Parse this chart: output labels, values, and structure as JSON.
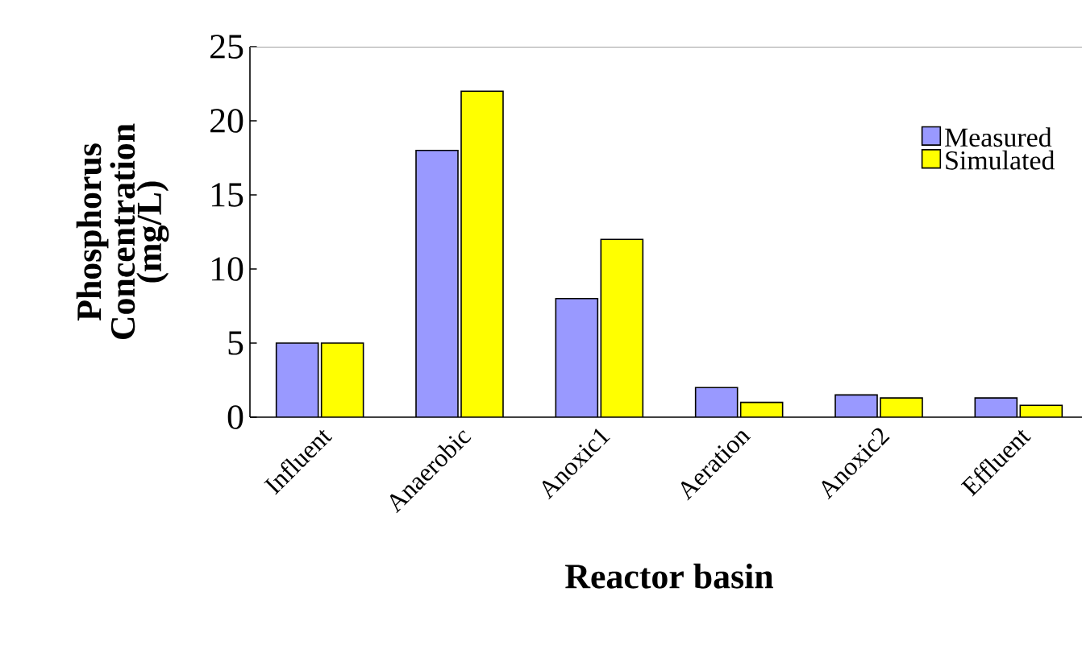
{
  "chart_data": {
    "type": "bar",
    "xlabel": "Reactor basin",
    "ylabel": "Phosphorus Concentration (mg/L)",
    "categories": [
      "Influent",
      "Anaerobic",
      "Anoxic1",
      "Aeration",
      "Anoxic2",
      "Effluent"
    ],
    "series": [
      {
        "name": "Measured",
        "color": "#9999ff",
        "values": [
          5,
          18,
          8,
          2,
          1.5,
          1.3
        ]
      },
      {
        "name": "Simulated",
        "color": "#ffff00",
        "values": [
          5,
          22,
          12,
          1,
          1.3,
          0.8
        ]
      }
    ],
    "ylim": [
      0,
      25
    ],
    "yticks": [
      0,
      5,
      10,
      15,
      20,
      25
    ],
    "legend": "top right",
    "grid": false
  }
}
